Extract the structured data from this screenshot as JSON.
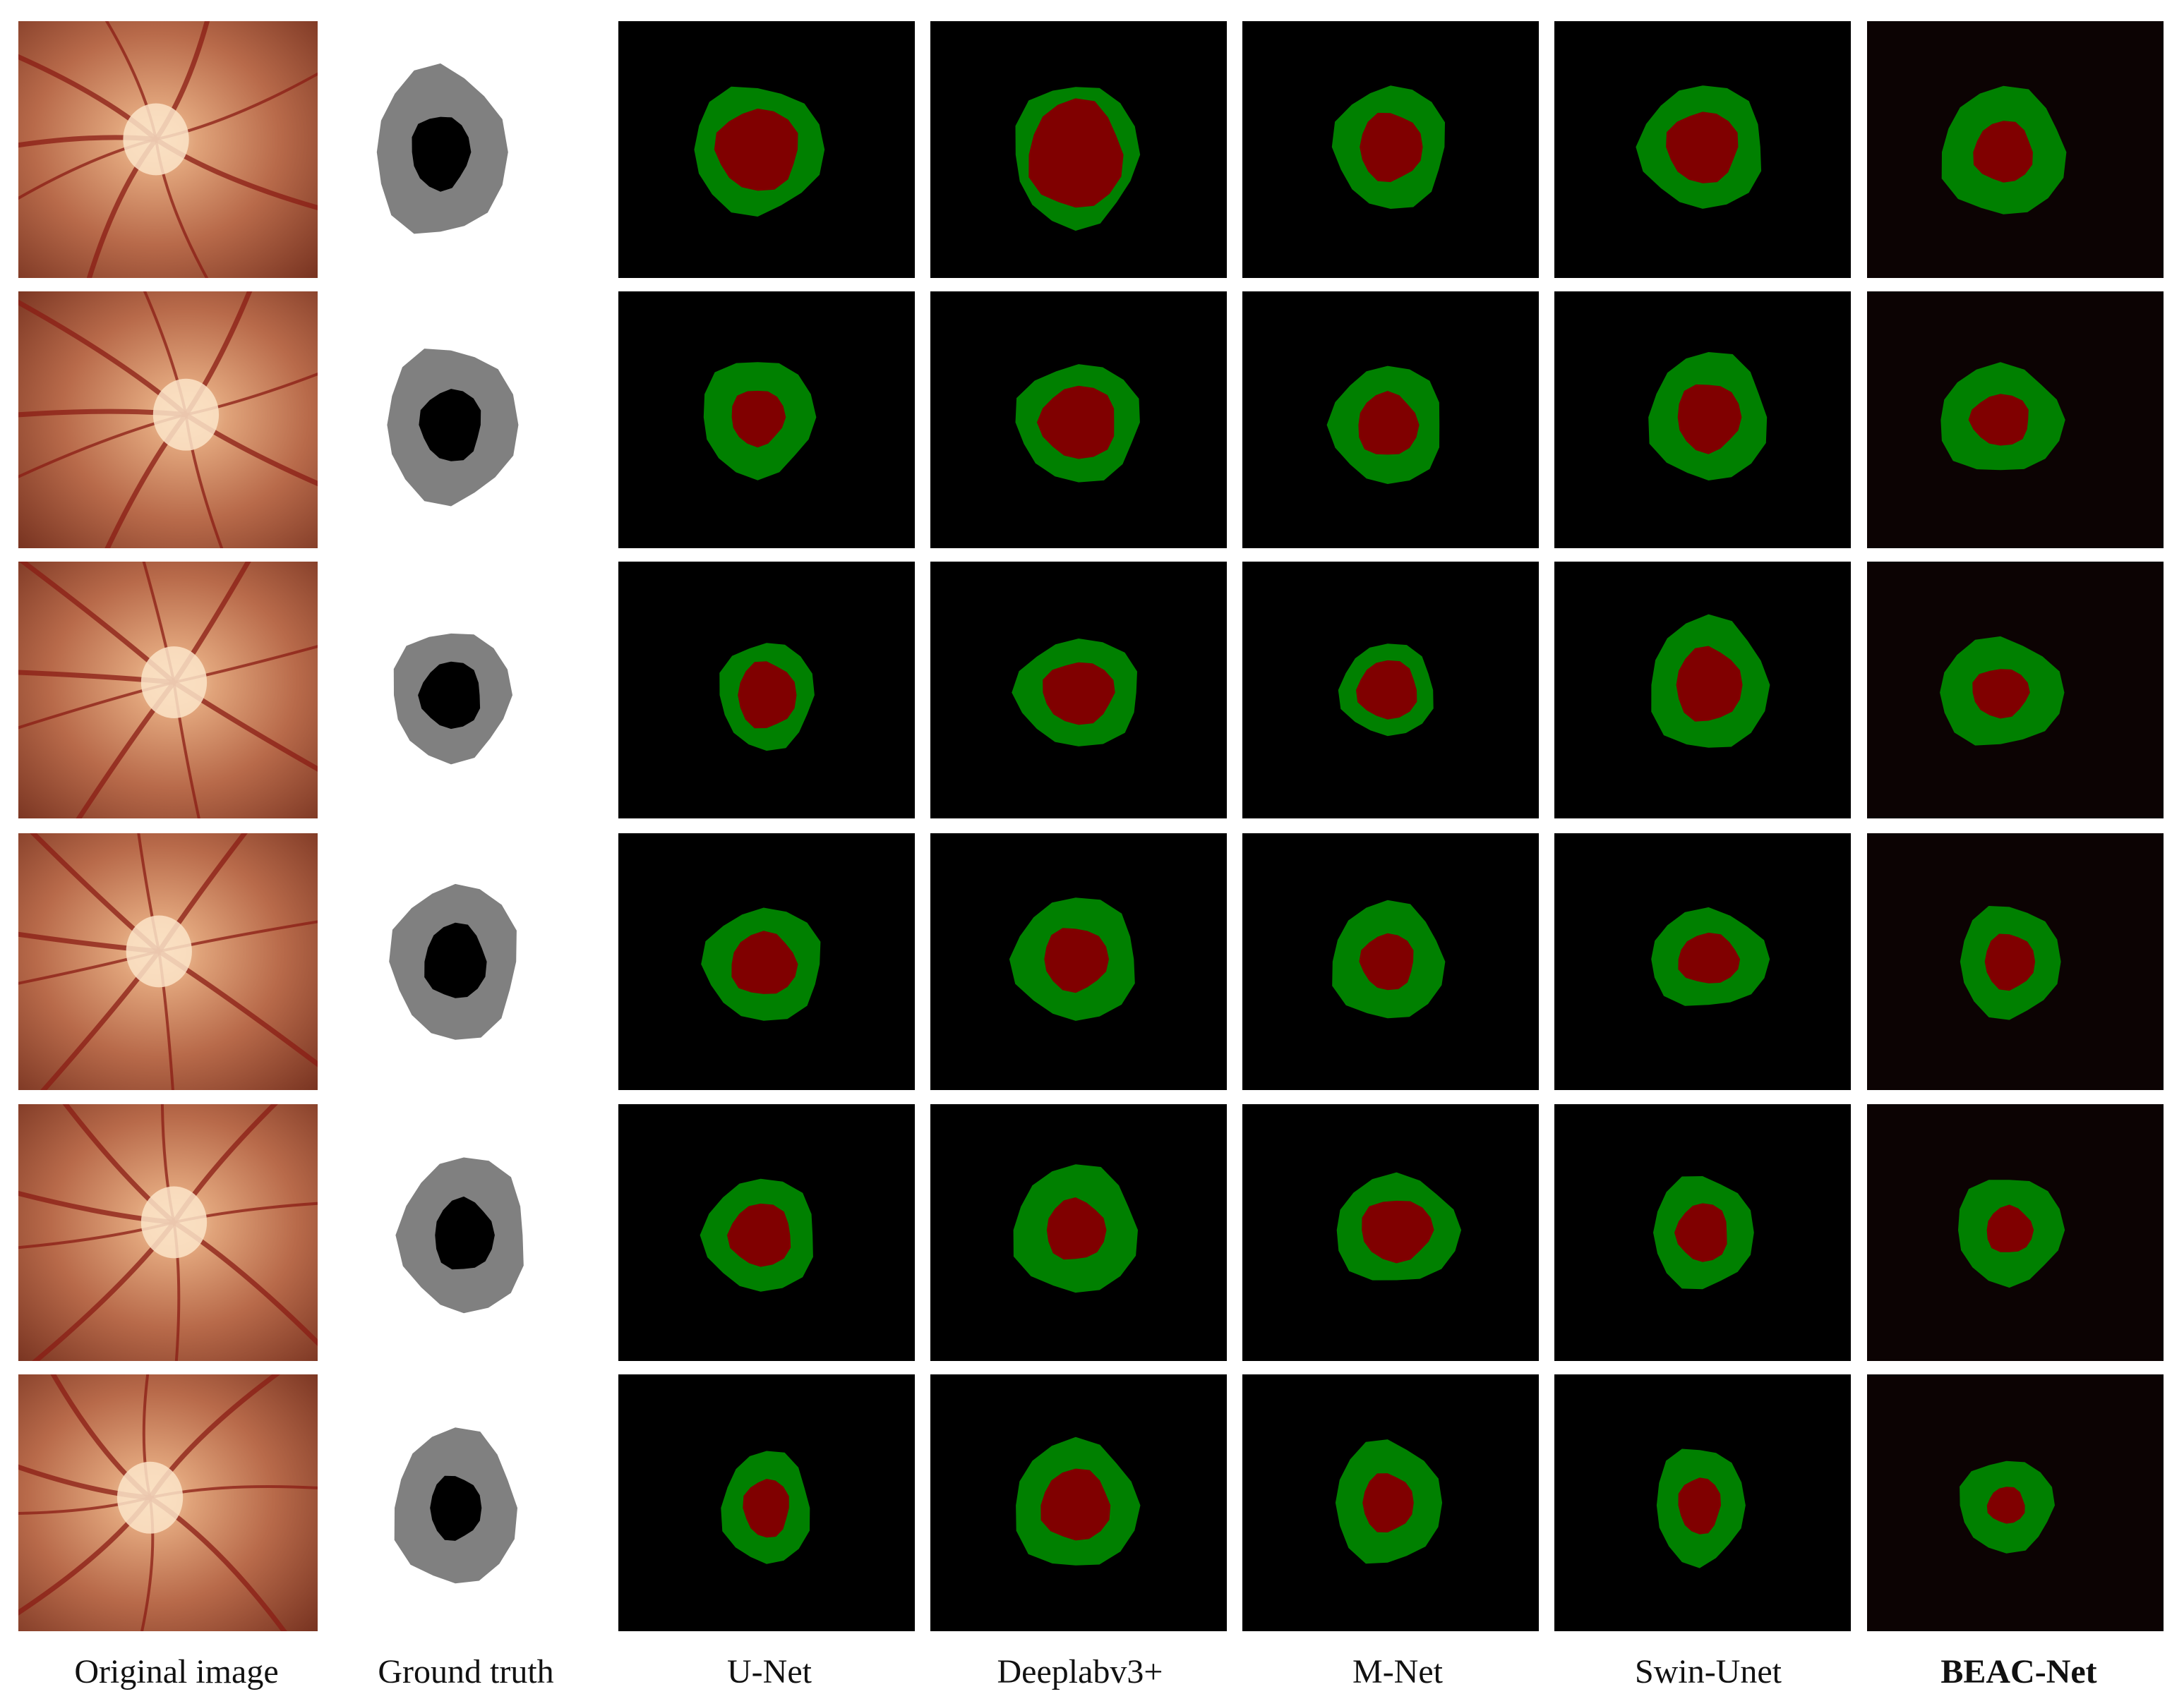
{
  "figure": {
    "columns": [
      {
        "key": "original",
        "label": "Original image",
        "bold": false
      },
      {
        "key": "gt",
        "label": "Ground truth",
        "bold": false
      },
      {
        "key": "unet",
        "label": "U-Net",
        "bold": false
      },
      {
        "key": "deeplab",
        "label": "Deeplabv3+",
        "bold": false
      },
      {
        "key": "mnet",
        "label": "M-Net",
        "bold": false
      },
      {
        "key": "swin",
        "label": "Swin-Unet",
        "bold": false
      },
      {
        "key": "beac",
        "label": "BEAC-Net",
        "bold": true
      }
    ],
    "rows": 6,
    "colors": {
      "background": "#ffffff",
      "seg_background": "#000000",
      "beac_background": "#0c0303",
      "optic_disc": "#008000",
      "optic_cup": "#800000",
      "gt_disc": "#808080",
      "gt_cup": "#000000",
      "fundus_base": "#b86a4a",
      "fundus_dark": "#7a3522",
      "fundus_disc": "#f2cfa8",
      "vessel": "#8a1c14"
    }
  }
}
